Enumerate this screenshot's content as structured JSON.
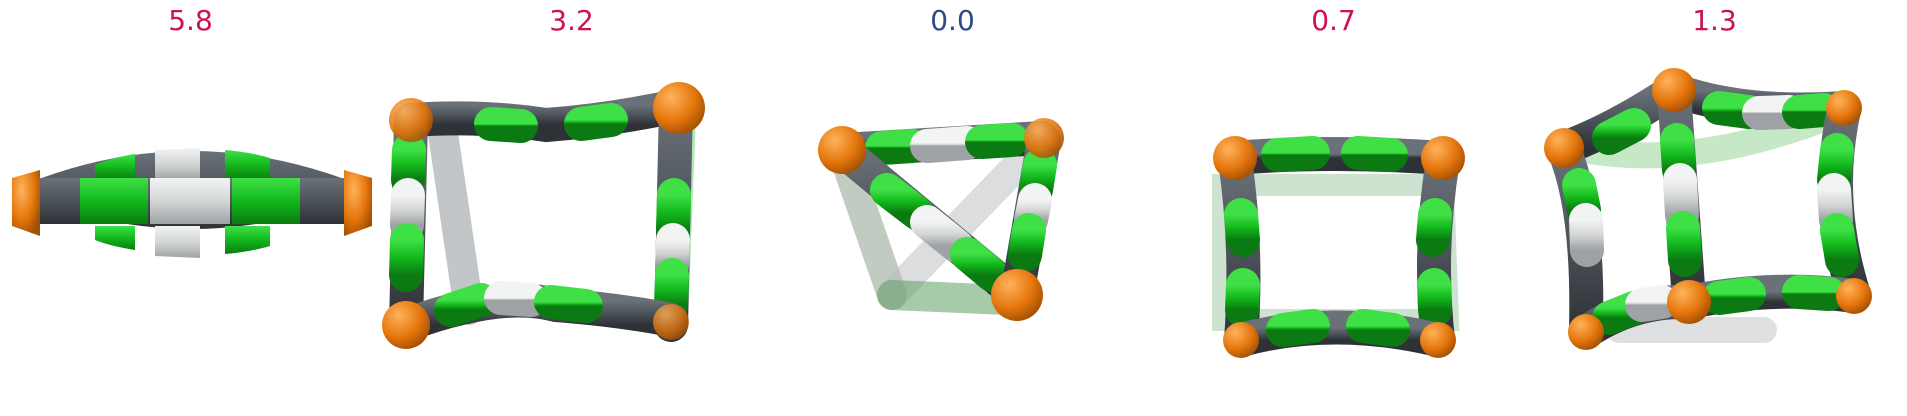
{
  "panels": [
    {
      "label": "5.8",
      "label_color": "#cc1157"
    },
    {
      "label": "3.2",
      "label_color": "#cc1157"
    },
    {
      "label": "0.0",
      "label_color": "#2b4b8a"
    },
    {
      "label": "0.7",
      "label_color": "#cc1157"
    },
    {
      "label": "1.3",
      "label_color": "#cc1157"
    }
  ],
  "colors": {
    "dark": "#4d535a",
    "green": "#12b81c",
    "white": "#d4d6d6",
    "orange": "#e5760c"
  }
}
